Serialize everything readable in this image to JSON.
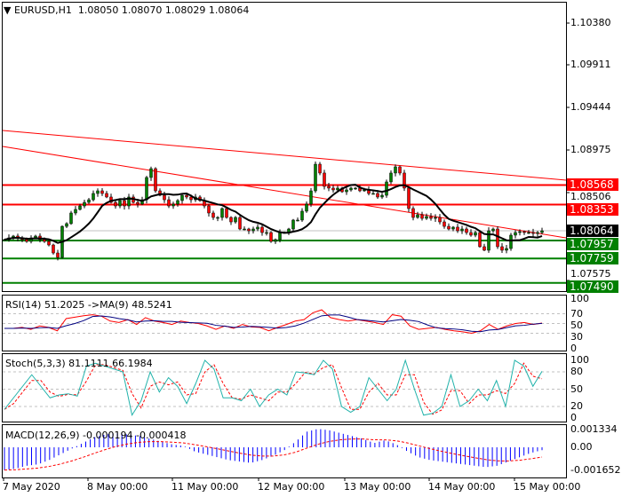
{
  "header": {
    "symbol": "EURUSD,H1",
    "open": "1.08050",
    "high": "1.08070",
    "low": "1.08029",
    "close": "1.08064"
  },
  "colors": {
    "bull": "#008000",
    "bear": "#ff0000",
    "support": "#008000",
    "resistance": "#ff0000",
    "ma": "#000000",
    "rsi": "#ff0000",
    "rsi_ma": "#000080",
    "stoch_main": "#20b2aa",
    "stoch_signal": "#ff0000",
    "macd_hist": "#0000ff",
    "macd_signal": "#ff0000"
  },
  "price_axis": [
    "1.10380",
    "1.09911",
    "1.09444",
    "1.08975",
    "1.08506",
    "1.07575"
  ],
  "levels": [
    {
      "price": 1.08568,
      "label": "1.08568",
      "type": "resistance"
    },
    {
      "price": 1.08353,
      "label": "1.08353",
      "type": "resistance"
    },
    {
      "price": 1.07957,
      "label": "1.07957",
      "type": "support"
    },
    {
      "price": 1.07759,
      "label": "1.07759",
      "type": "support"
    },
    {
      "price": 1.0749,
      "label": "1.07490",
      "type": "support"
    }
  ],
  "current_price": {
    "price": 1.08064,
    "label": "1.08064"
  },
  "closes": [
    1.07967,
    1.07986,
    1.08006,
    1.07986,
    1.07967,
    1.07947,
    1.07986,
    1.08006,
    1.07967,
    1.07947,
    1.07908,
    1.0782,
    1.07771,
    1.08113,
    1.08143,
    1.0826,
    1.08299,
    1.08338,
    1.08377,
    1.08406,
    1.08475,
    1.08504,
    1.08475,
    1.08436,
    1.08377,
    1.08338,
    1.08397,
    1.08338,
    1.08436,
    1.08377,
    1.08358,
    1.08406,
    1.08651,
    1.08748,
    1.08504,
    1.08455,
    1.08406,
    1.08338,
    1.08358,
    1.08397,
    1.08455,
    1.08436,
    1.08406,
    1.08436,
    1.08397,
    1.08338,
    1.0826,
    1.08211,
    1.08211,
    1.08309,
    1.08211,
    1.08162,
    1.08211,
    1.08084,
    1.08084,
    1.08064,
    1.08084,
    1.08104,
    1.08045,
    1.08045,
    1.07947,
    1.07967,
    1.08045,
    1.08045,
    1.08084,
    1.08182,
    1.08182,
    1.0828,
    1.08358,
    1.08504,
    1.08797,
    1.087,
    1.08553,
    1.08534,
    1.08514,
    1.08534,
    1.08494,
    1.08514,
    1.08534,
    1.08534,
    1.08504,
    1.08514,
    1.08475,
    1.08475,
    1.08436,
    1.08455,
    1.08602,
    1.087,
    1.08768,
    1.087,
    1.08534,
    1.08309,
    1.08211,
    1.0824,
    1.08201,
    1.08221,
    1.08201,
    1.08211,
    1.08162,
    1.08113,
    1.08084,
    1.08104,
    1.08064,
    1.08084,
    1.08045,
    1.08016,
    1.08045,
    1.07889,
    1.0785,
    1.08064,
    1.08084,
    1.07889,
    1.0785,
    1.07869,
    1.08016,
    1.08045,
    1.08055,
    1.08045,
    1.08045,
    1.08035,
    1.08045,
    1.08064
  ],
  "rsi": {
    "label": "RSI(14) 51.2025  ->MA(9) 48.5241",
    "axis": [
      "100",
      "70",
      "50",
      "30",
      "0"
    ],
    "values": [
      40,
      40,
      42,
      38,
      45,
      42,
      35,
      60,
      63,
      66,
      68,
      65,
      55,
      52,
      58,
      48,
      62,
      55,
      52,
      48,
      55,
      52,
      50,
      45,
      38,
      45,
      40,
      48,
      43,
      42,
      35,
      42,
      48,
      55,
      58,
      72,
      78,
      62,
      58,
      55,
      58,
      55,
      52,
      48,
      68,
      65,
      45,
      38,
      40,
      42,
      38,
      35,
      33,
      30,
      35,
      48,
      38,
      45,
      50,
      52,
      48,
      51
    ]
  },
  "stoch": {
    "label": "Stoch(5,3,3) 81.1111 66.1984",
    "axis": [
      "100",
      "80",
      "50",
      "20",
      "0"
    ],
    "values": [
      15,
      35,
      55,
      75,
      55,
      35,
      40,
      42,
      38,
      90,
      95,
      90,
      85,
      80,
      5,
      30,
      80,
      45,
      70,
      55,
      25,
      60,
      100,
      85,
      35,
      35,
      30,
      50,
      20,
      40,
      50,
      40,
      80,
      78,
      75,
      100,
      85,
      20,
      10,
      20,
      70,
      50,
      30,
      50,
      100,
      50,
      5,
      8,
      20,
      75,
      20,
      30,
      50,
      30,
      65,
      20,
      100,
      90,
      55,
      81
    ]
  },
  "macd": {
    "label": "MACD(12,26,9) -0.000194 -0.000418",
    "axis": [
      "0.001334",
      "0.00",
      "-0.001652"
    ],
    "values": [
      -0.0016,
      -0.0015,
      -0.0013,
      -0.0012,
      -0.0009,
      -0.0005,
      -0.0001,
      0.0003,
      0.0007,
      0.0009,
      0.001,
      0.0009,
      0.0008,
      0.0006,
      0.0004,
      0.0002,
      0.0001,
      -0.0003,
      -0.0005,
      -0.0007,
      -0.0009,
      -0.001,
      -0.0011,
      -0.0009,
      -0.0006,
      -0.0002,
      0.0004,
      0.0011,
      0.0013,
      0.0012,
      0.001,
      0.0008,
      0.0006,
      0.0003,
      0.0005,
      0.0002,
      -0.0003,
      -0.0007,
      -0.0009,
      -0.001,
      -0.0011,
      -0.0012,
      -0.0013,
      -0.0014,
      -0.0013,
      -0.001,
      -0.0007,
      -0.0004,
      -0.0002
    ]
  },
  "time_axis": [
    "7 May 2020",
    "8 May 00:00",
    "11 May 00:00",
    "12 May 00:00",
    "13 May 00:00",
    "14 May 00:00",
    "15 May 00:00"
  ]
}
